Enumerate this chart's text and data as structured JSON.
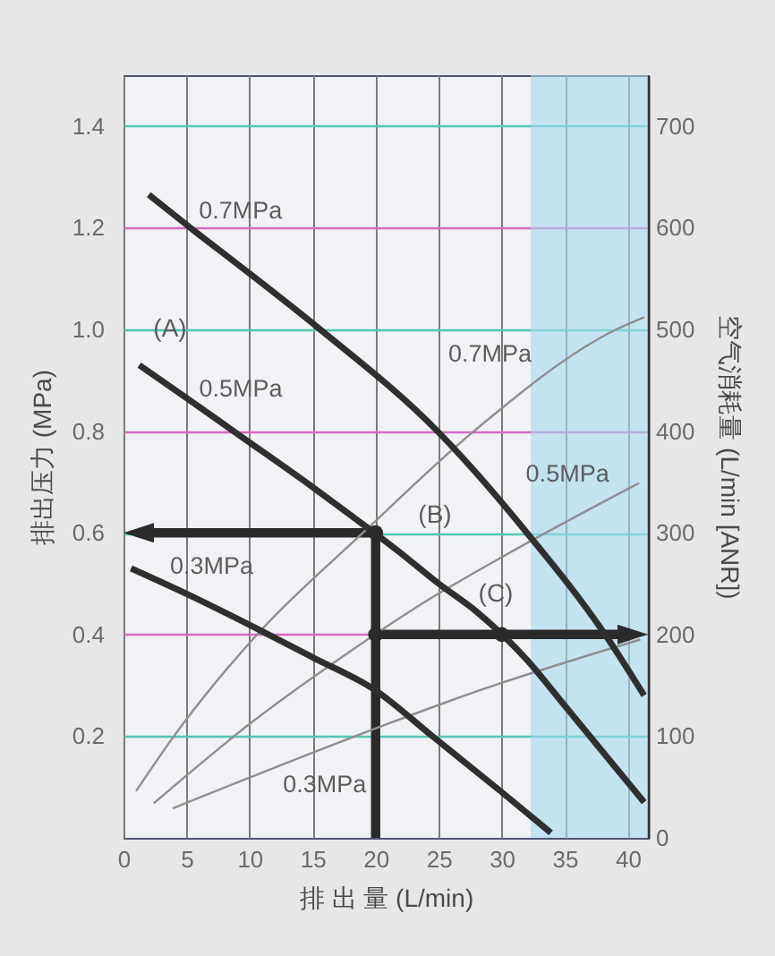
{
  "chart_data": {
    "type": "line",
    "xlabel": "排 出 量 (L/min)",
    "ylabel": "排出压力 (MPa)",
    "y2label": "空气消耗量 (L/min [ANR])",
    "xlim": [
      0,
      41.6
    ],
    "xticks": [
      0,
      5,
      10,
      15,
      20,
      25,
      30,
      35,
      40
    ],
    "ylim": [
      0,
      1.5
    ],
    "yticks": [
      0.2,
      0.4,
      0.6,
      0.8,
      {
        "value": 1,
        "label": "1.0"
      },
      1.2,
      1.4
    ],
    "y2lim": [
      0,
      750
    ],
    "y2ticks": [
      0,
      100,
      200,
      300,
      400,
      500,
      600,
      700
    ],
    "grid": true,
    "bands": [
      {
        "axis": "x",
        "from": 32.3,
        "to": 41.6,
        "color": "#a6d8ee"
      }
    ],
    "series": [
      {
        "name": "0.7MPa",
        "color": "#2f2f2f",
        "x": [
          2.0,
          5.3,
          10,
          15.6,
          24.9,
          32.0,
          38.2,
          41.3
        ],
        "values": [
          1.265,
          1.2,
          1.11,
          1.0,
          0.8,
          0.6,
          0.4,
          0.28
        ]
      },
      {
        "name": "0.5MPa",
        "color": "#2f2f2f",
        "x": [
          1.25,
          5,
          9.3,
          15,
          18,
          22,
          25,
          28,
          32,
          35,
          41.3
        ],
        "values": [
          0.93,
          0.865,
          0.79,
          0.69,
          0.635,
          0.56,
          0.5,
          0.445,
          0.35,
          0.26,
          0.07
        ]
      },
      {
        "name": "0.3MPa",
        "color": "#2f2f2f",
        "x": [
          0.6,
          5,
          10.7,
          15,
          20,
          24.5,
          30,
          33.9
        ],
        "values": [
          0.53,
          0.48,
          0.41,
          0.355,
          0.29,
          0.2,
          0.09,
          0.01
        ]
      },
      {
        "name": "0.7MPa",
        "axis": "y2",
        "color": "#8e8e8e",
        "x": [
          1.0,
          4.0,
          10.6,
          19.0,
          27.8,
          39.1,
          41.3
        ],
        "values": [
          46,
          100,
          200,
          300,
          400,
          500,
          512
        ]
      },
      {
        "name": "0.5MPa",
        "axis": "y2",
        "color": "#8e8e8e",
        "x": [
          2.4,
          10,
          17,
          23,
          30,
          40.9
        ],
        "values": [
          34,
          112,
          175,
          225,
          276,
          349
        ]
      },
      {
        "name": "0.3MPa",
        "axis": "y2",
        "color": "#8e8e8e",
        "x": [
          3.9,
          20.5,
          28,
          41.0
        ],
        "values": [
          29,
          110,
          144,
          195
        ]
      },
      {
        "type": "scatter",
        "marker": "circle",
        "color": "#2a2a2a",
        "x": [
          20,
          20,
          30
        ],
        "values": [
          0.6,
          0.4,
          0.4
        ]
      }
    ],
    "annotations": [
      "(A)",
      "(B)",
      "(C)"
    ]
  }
}
